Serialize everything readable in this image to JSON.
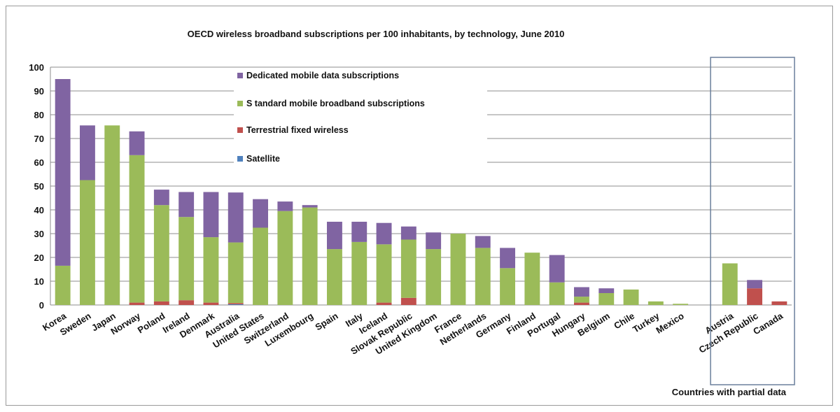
{
  "chart_data": {
    "type": "bar",
    "stacked": true,
    "title": "OECD wireless broadband subscriptions per 100 inhabitants, by technology, June 2010",
    "categories": [
      "Korea",
      "Sweden",
      "Japan",
      "Norway",
      "Poland",
      "Ireland",
      "Denmark",
      "Australia",
      "United States",
      "Switzerland",
      "Luxembourg",
      "Spain",
      "Italy",
      "Iceland",
      "Slovak Republic",
      "United Kingdom",
      "France",
      "Netherlands",
      "Germany",
      "Finland",
      "Portugal",
      "Hungary",
      "Belgium",
      "Chile",
      "Turkey",
      "Mexico",
      "",
      "Austria",
      "Czech Republic",
      "Canada"
    ],
    "series": [
      {
        "name": "Satellite",
        "color": "#4f81bd",
        "values": [
          0,
          0,
          0,
          0,
          0,
          0,
          0,
          0.3,
          0,
          0,
          0,
          0,
          0,
          0,
          0,
          0,
          0,
          0,
          0,
          0,
          0,
          0,
          0,
          0,
          0,
          0,
          0,
          0,
          0,
          0
        ]
      },
      {
        "name": "Terrestrial fixed wireless",
        "color": "#c0504d",
        "values": [
          0,
          0,
          0,
          1,
          1.5,
          2,
          1,
          0.5,
          0,
          0,
          0,
          0,
          0,
          1,
          3,
          0,
          0,
          0,
          0,
          0,
          0,
          1,
          0,
          0,
          0,
          0,
          0,
          0,
          7,
          1.5
        ]
      },
      {
        "name": "Standard mobile broadband subscriptions",
        "color": "#9bbb59",
        "values": [
          16.5,
          52.5,
          75.5,
          62,
          40.5,
          35,
          27.5,
          25.5,
          32.5,
          39.5,
          41,
          23.5,
          26.5,
          24.5,
          24.5,
          23.5,
          30,
          24,
          15.5,
          22,
          9.5,
          2.5,
          5,
          6.5,
          1.5,
          0.5,
          0,
          17.5,
          0,
          0
        ]
      },
      {
        "name": "Dedicated mobile data subscriptions",
        "color": "#8064a2",
        "values": [
          78.5,
          23,
          0,
          10,
          6.5,
          10.5,
          19,
          21,
          12,
          4,
          1,
          11.5,
          8.5,
          9,
          5.5,
          7,
          0,
          5,
          8.5,
          0,
          11.5,
          4,
          2,
          0,
          0,
          0,
          0,
          0,
          3.5,
          0
        ]
      }
    ],
    "ylim": [
      0,
      100
    ],
    "yticks": [
      "0",
      "10",
      "20",
      "30",
      "40",
      "50",
      "60",
      "70",
      "80",
      "90",
      "100"
    ],
    "partial_group": {
      "label": "Countries with partial data",
      "categories": [
        "Austria",
        "Czech Republic",
        "Canada"
      ]
    },
    "legend": {
      "placement": "top-center",
      "visible_labels": [
        "Dedicated mobile data subscriptions",
        "S tandard mobile broadband subscriptions",
        "Terrestrial fixed wireless",
        "Satellite"
      ]
    },
    "grid": true
  }
}
